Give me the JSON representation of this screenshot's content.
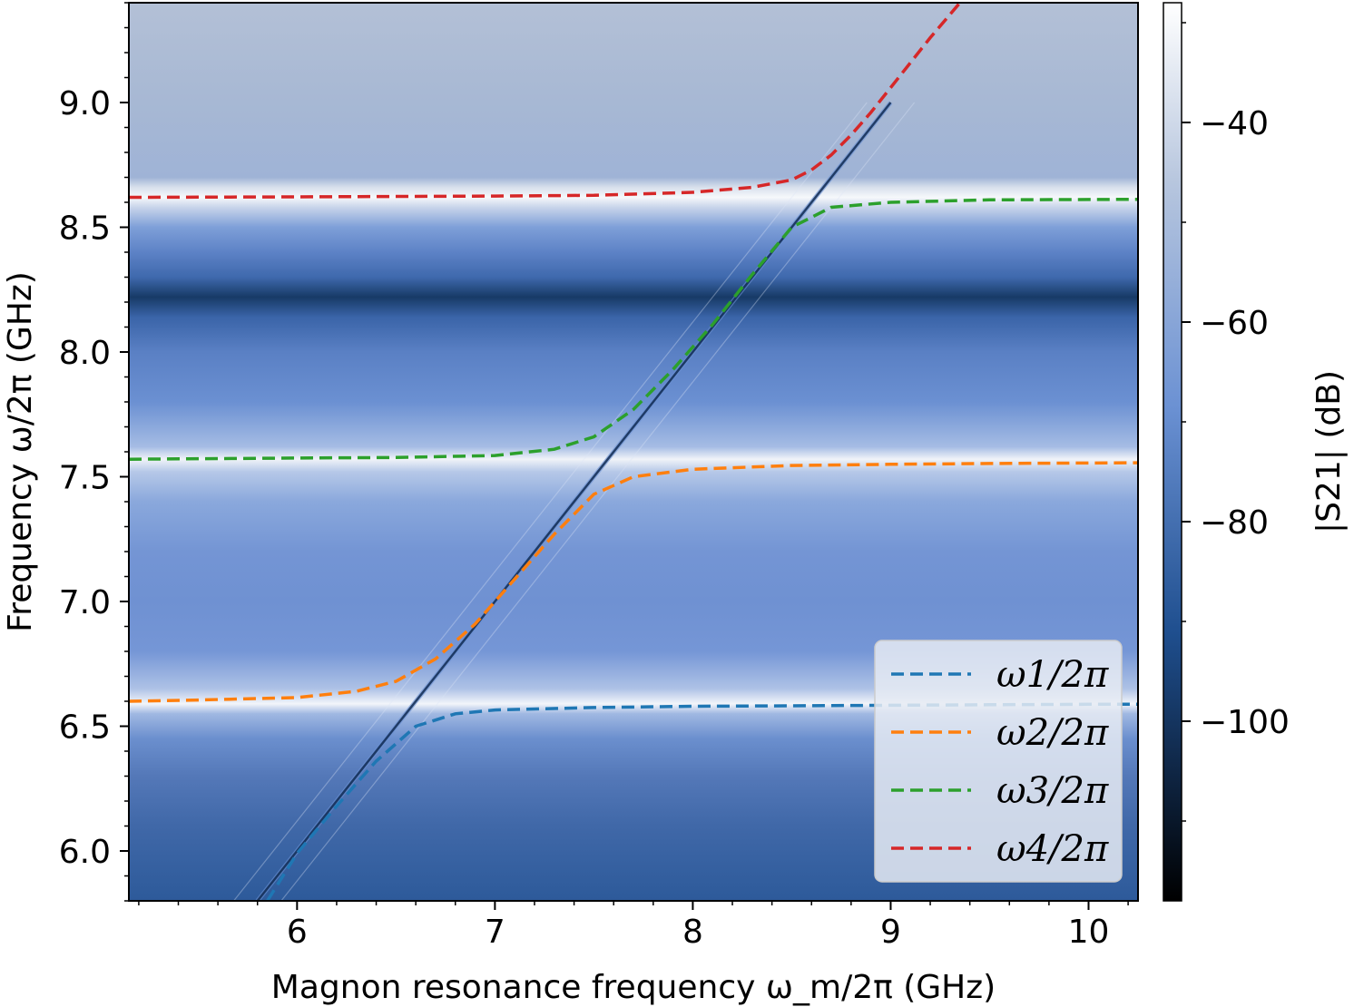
{
  "chart_data": {
    "type": "heatmap",
    "xlabel": "Magnon resonance frequency ω_m/2π (GHz)",
    "ylabel": "Frequency ω/2π (GHz)",
    "colorbar_label": "|S21| (dB)",
    "xlim": [
      5.15,
      10.25
    ],
    "ylim": [
      5.8,
      9.4
    ],
    "x_ticks": [
      6,
      7,
      8,
      9,
      10
    ],
    "x_tick_labels": [
      "6",
      "7",
      "8",
      "9",
      "10"
    ],
    "y_ticks": [
      6.0,
      6.5,
      7.0,
      7.5,
      8.0,
      8.5,
      9.0
    ],
    "y_tick_labels": [
      "6.0",
      "6.5",
      "7.0",
      "7.5",
      "8.0",
      "8.5",
      "9.0"
    ],
    "colorbar_range": [
      -118,
      -28
    ],
    "colorbar_ticks": [
      -40,
      -60,
      -80,
      -100
    ],
    "colorbar_tick_labels": [
      "−40",
      "−60",
      "−80",
      "−100"
    ],
    "colormap": [
      "#000000",
      "#1f4f8f",
      "#6b91d3",
      "#b7c6de",
      "#ffffff"
    ],
    "cavity_modes_GHz": [
      6.6,
      7.57,
      8.62
    ],
    "transmission_minimum_GHz": 8.22,
    "legend_position": "lower-right",
    "series": [
      {
        "name": "ω1/2π",
        "color": "#1f77b4",
        "style": "dashed",
        "x": [
          5.85,
          6.0,
          6.2,
          6.4,
          6.6,
          6.8,
          7.0,
          7.5,
          8.0,
          8.5,
          9.0,
          9.5,
          10.0,
          10.25
        ],
        "y": [
          5.8,
          5.99,
          6.18,
          6.36,
          6.5,
          6.55,
          6.565,
          6.575,
          6.58,
          6.582,
          6.584,
          6.586,
          6.588,
          6.588
        ]
      },
      {
        "name": "ω2/2π",
        "color": "#ff7f0e",
        "style": "dashed",
        "x": [
          5.15,
          5.5,
          6.0,
          6.3,
          6.5,
          6.7,
          6.9,
          7.1,
          7.3,
          7.5,
          7.7,
          8.0,
          8.5,
          9.0,
          9.5,
          10.25
        ],
        "y": [
          6.6,
          6.605,
          6.615,
          6.64,
          6.68,
          6.77,
          6.91,
          7.09,
          7.27,
          7.43,
          7.5,
          7.53,
          7.545,
          7.55,
          7.553,
          7.556
        ]
      },
      {
        "name": "ω3/2π",
        "color": "#2ca02c",
        "style": "dashed",
        "x": [
          5.15,
          6.0,
          6.5,
          7.0,
          7.3,
          7.5,
          7.7,
          7.9,
          8.1,
          8.3,
          8.5,
          8.7,
          9.0,
          9.5,
          10.25
        ],
        "y": [
          7.57,
          7.575,
          7.577,
          7.585,
          7.61,
          7.66,
          7.77,
          7.93,
          8.11,
          8.31,
          8.5,
          8.58,
          8.6,
          8.61,
          8.612
        ]
      },
      {
        "name": "ω4/2π",
        "color": "#d62728",
        "style": "dashed",
        "x": [
          5.15,
          6.0,
          7.0,
          7.5,
          8.0,
          8.3,
          8.5,
          8.6,
          8.7,
          8.8,
          8.9,
          9.0,
          9.1,
          9.2,
          9.35
        ],
        "y": [
          8.62,
          8.622,
          8.625,
          8.628,
          8.64,
          8.66,
          8.69,
          8.73,
          8.79,
          8.87,
          8.96,
          9.06,
          9.16,
          9.26,
          9.4
        ]
      }
    ]
  }
}
